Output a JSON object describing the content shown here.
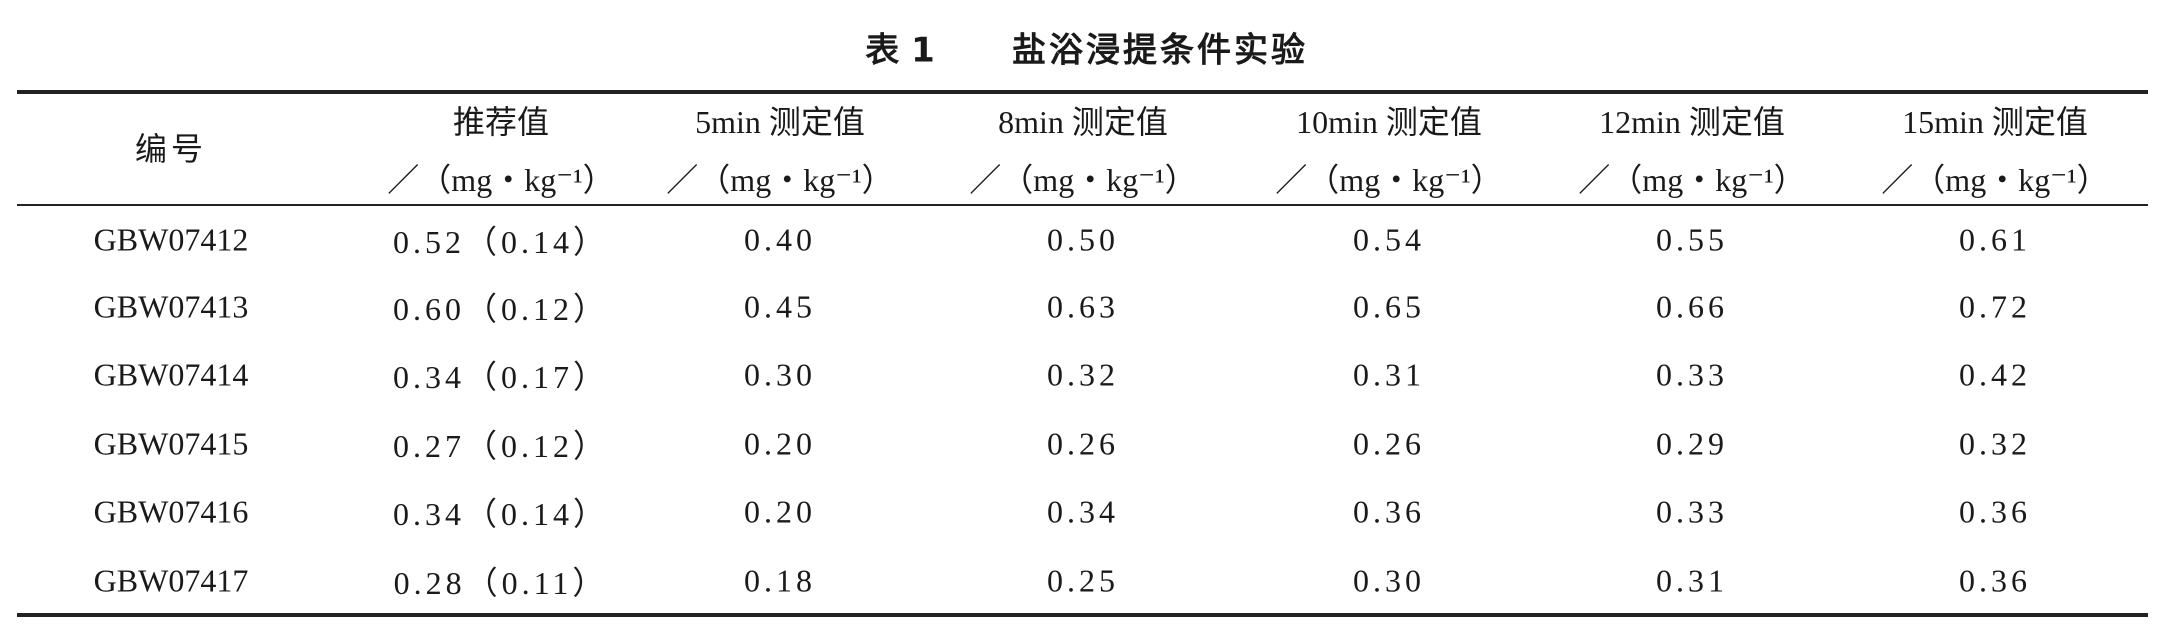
{
  "table": {
    "caption_number": "表 1",
    "caption": "盐浴浸提条件实验",
    "header": [
      {
        "label": "编号"
      },
      {
        "label": "推荐值",
        "unit": "／（mg・kg⁻¹）"
      },
      {
        "label": "5min 测定值",
        "unit": "／（mg・kg⁻¹）"
      },
      {
        "label": "8min 测定值",
        "unit": "／（mg・kg⁻¹）"
      },
      {
        "label": "10min 测定值",
        "unit": "／（mg・kg⁻¹）"
      },
      {
        "label": "12min 测定值",
        "unit": "／（mg・kg⁻¹）"
      },
      {
        "label": "15min 测定值",
        "unit": "／（mg・kg⁻¹）"
      }
    ],
    "rows": [
      [
        "GBW07412",
        "0.52（0.14）",
        "0.40",
        "0.50",
        "0.54",
        "0.55",
        "0.61"
      ],
      [
        "GBW07413",
        "0.60（0.12）",
        "0.45",
        "0.63",
        "0.65",
        "0.66",
        "0.72"
      ],
      [
        "GBW07414",
        "0.34（0.17）",
        "0.30",
        "0.32",
        "0.31",
        "0.33",
        "0.42"
      ],
      [
        "GBW07415",
        "0.27（0.12）",
        "0.20",
        "0.26",
        "0.26",
        "0.29",
        "0.32"
      ],
      [
        "GBW07416",
        "0.34（0.14）",
        "0.20",
        "0.34",
        "0.36",
        "0.33",
        "0.36"
      ],
      [
        "GBW07417",
        "0.28（0.11）",
        "0.18",
        "0.25",
        "0.30",
        "0.31",
        "0.36"
      ]
    ]
  }
}
